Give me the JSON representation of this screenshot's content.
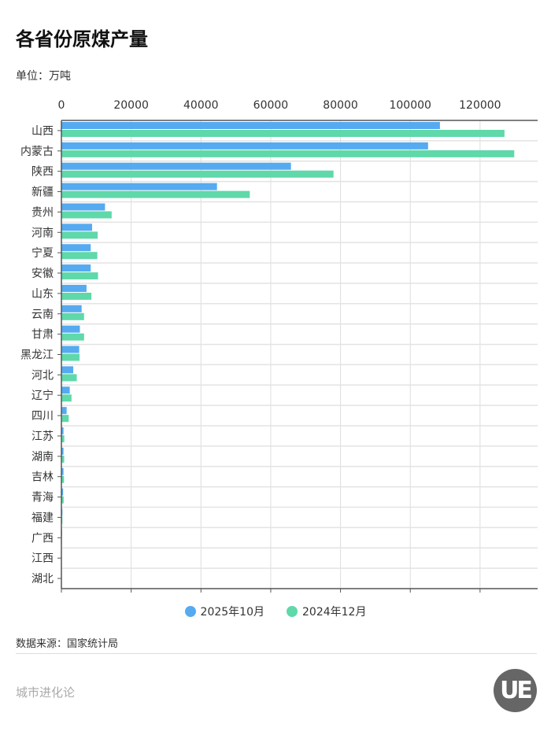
{
  "header": {
    "title": "各省份原煤产量",
    "unit": "单位：万吨"
  },
  "chart_data": {
    "type": "bar",
    "orientation": "horizontal",
    "title": "各省份原煤产量",
    "xlabel": "",
    "ylabel": "",
    "xlim": [
      0,
      136500
    ],
    "xticks": [
      0,
      20000,
      40000,
      60000,
      80000,
      100000,
      120000
    ],
    "grid": true,
    "legend_position": "bottom",
    "categories": [
      "山西",
      "内蒙古",
      "陕西",
      "新疆",
      "贵州",
      "河南",
      "宁夏",
      "安徽",
      "山东",
      "云南",
      "甘肃",
      "黑龙江",
      "河北",
      "辽宁",
      "四川",
      "江苏",
      "湖南",
      "吉林",
      "青海",
      "福建",
      "广西",
      "江西",
      "湖北"
    ],
    "series": [
      {
        "name": "2025年10月",
        "color": "#56aaf0",
        "values": [
          108500,
          105100,
          65800,
          44600,
          12500,
          8800,
          8400,
          8400,
          7200,
          5800,
          5300,
          5100,
          3400,
          2400,
          1500,
          600,
          600,
          600,
          500,
          300,
          200,
          100,
          30
        ]
      },
      {
        "name": "2024年12月",
        "color": "#5fd8aa",
        "values": [
          127000,
          129800,
          78000,
          54000,
          14400,
          10400,
          10300,
          10500,
          8600,
          6500,
          6500,
          5200,
          4400,
          2900,
          2100,
          830,
          800,
          750,
          650,
          300,
          150,
          100,
          30
        ]
      }
    ]
  },
  "footer": {
    "source": "数据来源：国家统计局",
    "brand": "城市进化论",
    "logo_text": "UE"
  }
}
